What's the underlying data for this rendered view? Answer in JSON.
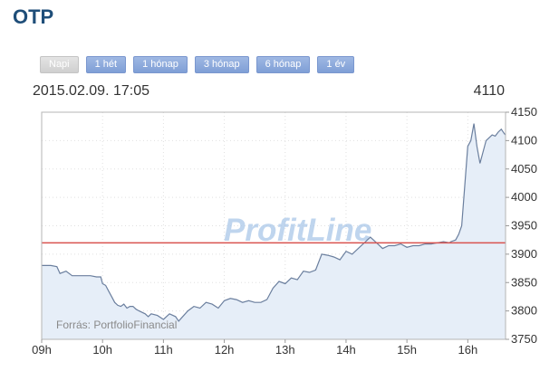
{
  "header": {
    "title": "OTP"
  },
  "range_tabs": [
    {
      "label": "Napi",
      "active": true
    },
    {
      "label": "1 hét",
      "active": false
    },
    {
      "label": "1 hónap",
      "active": false
    },
    {
      "label": "3 hónap",
      "active": false
    },
    {
      "label": "6 hónap",
      "active": false
    },
    {
      "label": "1 év",
      "active": false
    }
  ],
  "info": {
    "datetime": "2015.02.09. 17:05",
    "last_value": "4110"
  },
  "watermark": "ProfitLine",
  "source_note": "Forrás: PortfolioFinancial",
  "colors": {
    "line": "#6b7f9e",
    "fill": "#e6eef8",
    "reference_line": "#d9534f",
    "grid": "#e0e0e0"
  },
  "chart_data": {
    "type": "area",
    "title": "",
    "xlabel": "",
    "ylabel": "",
    "x_tick_labels": [
      "09h",
      "10h",
      "11h",
      "12h",
      "13h",
      "14h",
      "15h",
      "16h"
    ],
    "y_tick_labels": [
      "4150",
      "4100",
      "4050",
      "4000",
      "3950",
      "3900",
      "3850",
      "3800",
      "3750"
    ],
    "xlim": [
      9.0,
      16.62
    ],
    "ylim": [
      3750,
      4150
    ],
    "reference_level": 3920,
    "grid": true,
    "series": [
      {
        "x": [
          9.0,
          9.15,
          9.25,
          9.3,
          9.4,
          9.5,
          9.6,
          9.7,
          9.8,
          9.9,
          9.97,
          10.0,
          10.05,
          10.1,
          10.15,
          10.2,
          10.25,
          10.3,
          10.35,
          10.4,
          10.45,
          10.5,
          10.55,
          10.6,
          10.7,
          10.75,
          10.8,
          10.9,
          11.0,
          11.1,
          11.2,
          11.25,
          11.3,
          11.4,
          11.5,
          11.6,
          11.7,
          11.8,
          11.9,
          12.0,
          12.1,
          12.2,
          12.3,
          12.4,
          12.5,
          12.6,
          12.7,
          12.8,
          12.9,
          13.0,
          13.1,
          13.2,
          13.3,
          13.4,
          13.5,
          13.6,
          13.7,
          13.8,
          13.9,
          14.0,
          14.1,
          14.2,
          14.3,
          14.4,
          14.5,
          14.6,
          14.7,
          14.8,
          14.9,
          15.0,
          15.1,
          15.2,
          15.3,
          15.4,
          15.5,
          15.6,
          15.7,
          15.72,
          15.8,
          15.85,
          15.9,
          16.0,
          16.05,
          16.1,
          16.15,
          16.2,
          16.3,
          16.4,
          16.45,
          16.5,
          16.55,
          16.6,
          16.62
        ],
        "values": [
          3880,
          3880,
          3878,
          3866,
          3870,
          3862,
          3862,
          3862,
          3862,
          3860,
          3860,
          3848,
          3845,
          3835,
          3825,
          3815,
          3810,
          3808,
          3812,
          3805,
          3808,
          3808,
          3803,
          3800,
          3795,
          3790,
          3795,
          3792,
          3785,
          3795,
          3790,
          3782,
          3788,
          3800,
          3808,
          3805,
          3815,
          3812,
          3805,
          3818,
          3822,
          3820,
          3815,
          3818,
          3815,
          3815,
          3820,
          3840,
          3852,
          3848,
          3858,
          3855,
          3870,
          3868,
          3872,
          3900,
          3898,
          3895,
          3890,
          3905,
          3900,
          3910,
          3920,
          3930,
          3920,
          3910,
          3915,
          3915,
          3918,
          3912,
          3915,
          3915,
          3918,
          3918,
          3920,
          3922,
          3920,
          3922,
          3925,
          3935,
          3950,
          4090,
          4100,
          4130,
          4090,
          4060,
          4100,
          4110,
          4108,
          4115,
          4120,
          4112,
          4110
        ]
      }
    ]
  }
}
